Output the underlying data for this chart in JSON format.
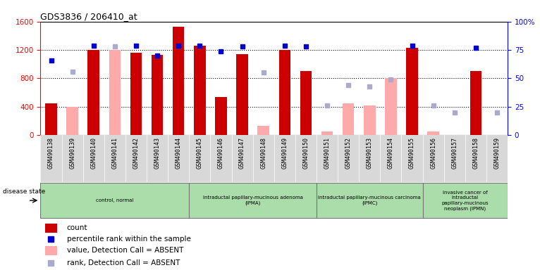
{
  "title": "GDS3836 / 206410_at",
  "samples": [
    "GSM490138",
    "GSM490139",
    "GSM490140",
    "GSM490141",
    "GSM490142",
    "GSM490143",
    "GSM490144",
    "GSM490145",
    "GSM490146",
    "GSM490147",
    "GSM490148",
    "GSM490149",
    "GSM490150",
    "GSM490151",
    "GSM490152",
    "GSM490153",
    "GSM490154",
    "GSM490155",
    "GSM490156",
    "GSM490157",
    "GSM490158",
    "GSM490159"
  ],
  "count_values": [
    450,
    null,
    1200,
    null,
    1160,
    1130,
    1530,
    1260,
    540,
    1140,
    null,
    1200,
    900,
    null,
    null,
    null,
    null,
    1230,
    null,
    null,
    900,
    null
  ],
  "count_absent": [
    null,
    400,
    null,
    1200,
    null,
    null,
    null,
    null,
    null,
    null,
    130,
    null,
    null,
    50,
    450,
    420,
    800,
    null,
    50,
    null,
    null,
    null
  ],
  "percentile_present": [
    66,
    null,
    79,
    null,
    79,
    70,
    79,
    79,
    74,
    78,
    null,
    79,
    78,
    null,
    null,
    null,
    null,
    79,
    null,
    null,
    77,
    null
  ],
  "percentile_absent": [
    null,
    56,
    null,
    78,
    null,
    null,
    null,
    null,
    null,
    null,
    55,
    null,
    null,
    26,
    44,
    43,
    49,
    null,
    26,
    20,
    null,
    20
  ],
  "groups": [
    {
      "label": "control, normal",
      "start": 0,
      "end": 6
    },
    {
      "label": "intraductal papillary-mucinous adenoma\n(IPMA)",
      "start": 7,
      "end": 12
    },
    {
      "label": "intraductal papillary-mucinous carcinoma\n(IPMC)",
      "start": 13,
      "end": 17
    },
    {
      "label": "invasive cancer of\nintraductal\npapillary-mucinous\nneoplasm (IPMN)",
      "start": 18,
      "end": 21
    }
  ],
  "ylim_left": [
    0,
    1600
  ],
  "ylim_right": [
    0,
    100
  ],
  "bar_color_present": "#cc0000",
  "bar_color_absent": "#ffaaaa",
  "marker_color_present": "#0000cc",
  "marker_color_absent": "#aaaacc",
  "group_color": "#aaddaa"
}
